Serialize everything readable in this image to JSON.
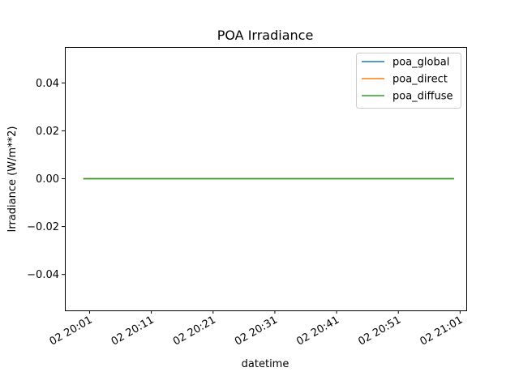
{
  "chart_data": {
    "type": "line",
    "title": "POA Irradiance",
    "xlabel": "datetime",
    "ylabel": "Irradiance (W/m**2)",
    "x": [
      "02 20:00",
      "02 21:00"
    ],
    "series": [
      {
        "name": "poa_global",
        "color": "#1f77b4",
        "values": [
          0,
          0
        ]
      },
      {
        "name": "poa_direct",
        "color": "#ff7f0e",
        "values": [
          0,
          0
        ]
      },
      {
        "name": "poa_diffuse",
        "color": "#2ca02c",
        "values": [
          0,
          0
        ]
      }
    ],
    "xlim_minutes": [
      -3,
      62
    ],
    "ylim": [
      -0.055,
      0.055
    ],
    "yticks": [
      {
        "value": 0.04,
        "label": "0.04"
      },
      {
        "value": 0.02,
        "label": "0.02"
      },
      {
        "value": 0.0,
        "label": "0.00"
      },
      {
        "value": -0.02,
        "label": "−0.02"
      },
      {
        "value": -0.04,
        "label": "−0.04"
      }
    ],
    "xticks": [
      {
        "minute": 1,
        "label": "02 20:01"
      },
      {
        "minute": 11,
        "label": "02 20:11"
      },
      {
        "minute": 21,
        "label": "02 20:21"
      },
      {
        "minute": 31,
        "label": "02 20:31"
      },
      {
        "minute": 41,
        "label": "02 20:41"
      },
      {
        "minute": 51,
        "label": "02 20:51"
      },
      {
        "minute": 61,
        "label": "02 21:01"
      }
    ],
    "legend_position": "top-right",
    "grid": false
  }
}
